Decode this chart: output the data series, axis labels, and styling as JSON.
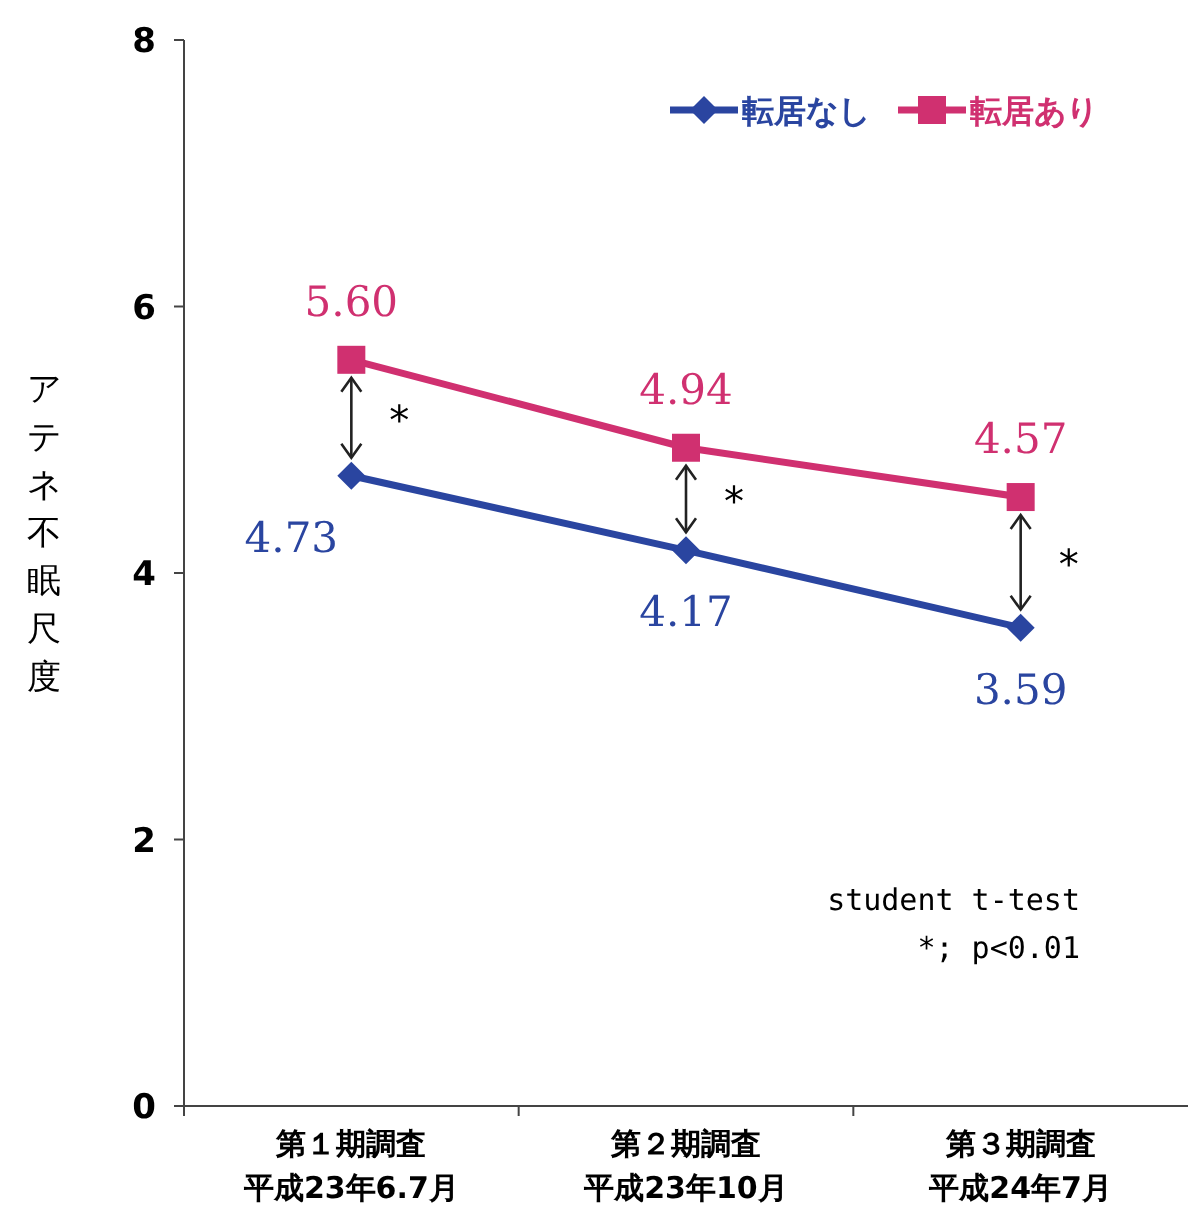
{
  "chart_data": {
    "type": "line",
    "ylabel": "アテネ不眠尺度",
    "categories": [
      "第１期調査平成23年6.7月",
      "第２期調査平成23年10月",
      "第３期調査平成24年7月"
    ],
    "series": [
      {
        "name": "転居なし",
        "color": "#2a45a0",
        "marker": "diamond",
        "values": [
          4.73,
          4.17,
          3.59
        ],
        "value_labels": [
          "4.73",
          "4.17",
          "3.59"
        ]
      },
      {
        "name": "転居あり",
        "color": "#d03070",
        "marker": "square",
        "values": [
          5.6,
          4.94,
          4.57
        ],
        "value_labels": [
          "5.60",
          "4.94",
          "4.57"
        ]
      }
    ],
    "ylim": [
      0,
      8
    ],
    "yticks": [
      0,
      2,
      4,
      6,
      8
    ],
    "legend": "top right",
    "annotations": [
      "*",
      "*",
      "*",
      "student t-test",
      "*; p<0.01"
    ]
  }
}
